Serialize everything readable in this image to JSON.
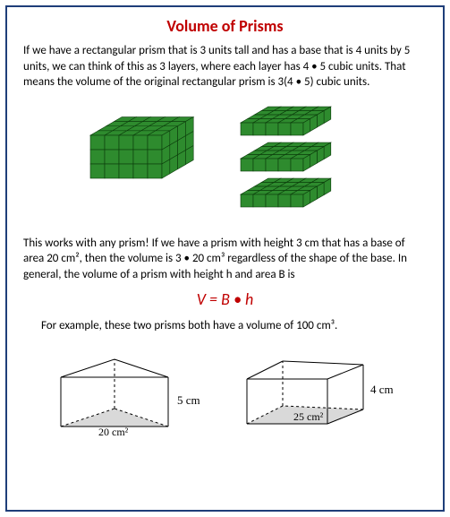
{
  "title": "Volume of Prisms",
  "para1": "If we have a rectangular prism that is 3 units tall and has a base that is 4 units by 5 units, we can think of this as 3 layers, where each layer has 4 • 5 cubic units. That means the volume of the original rectangular prism is 3(4 • 5) cubic units.",
  "para2": "This works with any prism!  If we have a prism with height 3 cm that has a base of area 20 cm², then the volume is 3 • 20  cm³ regardless of the shape of the base. In general, the volume  of a prism  with height h and area B is",
  "formula": "V = B • h",
  "para3": "For example, these two prisms both have a volume of 100 cm³.",
  "prism1": {
    "height_label": "5 cm",
    "base_label": "20 cm²"
  },
  "prism2": {
    "height_label": "4 cm",
    "base_label": "25 cm²"
  },
  "cubes": {
    "fill": "#2e8b2e",
    "stroke": "#0a3a0a",
    "solid": {
      "cols": 5,
      "rows_front": 3,
      "depth": 4,
      "cell": 16
    },
    "layers": {
      "cols": 5,
      "depth": 4,
      "cell": 14,
      "count": 3,
      "gap": 8
    }
  },
  "colors": {
    "title": "#c00000",
    "formula": "#c00000",
    "border": "#1f3e79",
    "text": "#000000",
    "prism_stroke": "#000000",
    "prism_fill": "#d9d9d9"
  }
}
